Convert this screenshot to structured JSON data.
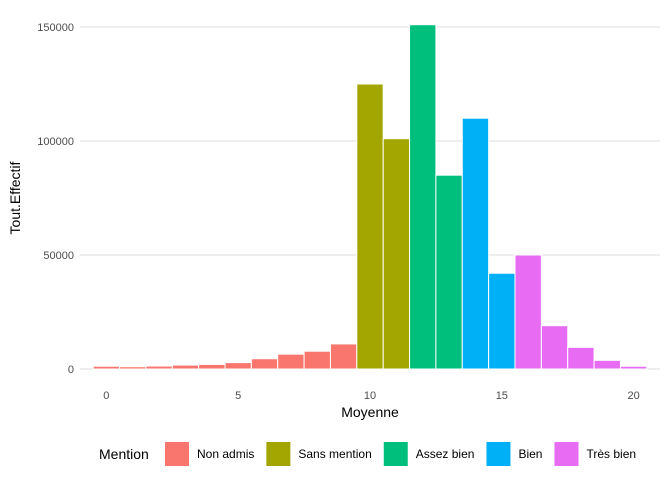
{
  "chart_data": {
    "type": "bar",
    "title": "",
    "xlabel": "Moyenne",
    "ylabel": "Tout.Effectif",
    "xlim": [
      -1,
      21
    ],
    "ylim": [
      0,
      155000
    ],
    "x_ticks": [
      0,
      5,
      10,
      15,
      20
    ],
    "x_tick_labels": [
      "0",
      "5",
      "10",
      "15",
      "20"
    ],
    "y_ticks": [
      0,
      50000,
      100000,
      150000
    ],
    "y_tick_labels": [
      "0",
      "50000",
      "100000",
      "150000"
    ],
    "grid": true,
    "legend": {
      "title": "Mention",
      "placement": "bottom",
      "entries": [
        {
          "label": "Non admis",
          "color": "#F8766D"
        },
        {
          "label": "Sans mention",
          "color": "#A3A500"
        },
        {
          "label": "Assez bien",
          "color": "#00BF7D"
        },
        {
          "label": "Bien",
          "color": "#00B0F6"
        },
        {
          "label": "Très bien",
          "color": "#E76BF3"
        }
      ]
    },
    "bin_width": 1,
    "series": [
      {
        "name": "Non admis",
        "color": "#F8766D",
        "x": [
          0,
          1,
          2,
          3,
          4,
          5,
          6,
          7,
          8,
          9
        ],
        "values": [
          1200,
          1000,
          1300,
          1700,
          2000,
          2800,
          4500,
          6500,
          7800,
          11000
        ]
      },
      {
        "name": "Sans mention",
        "color": "#A3A500",
        "x": [
          10,
          11
        ],
        "values": [
          125000,
          101000
        ]
      },
      {
        "name": "Assez bien",
        "color": "#00BF7D",
        "x": [
          12,
          13
        ],
        "values": [
          151000,
          85000
        ]
      },
      {
        "name": "Bien",
        "color": "#00B0F6",
        "x": [
          14,
          15
        ],
        "values": [
          110000,
          42000
        ]
      },
      {
        "name": "Très bien",
        "color": "#E76BF3",
        "x": [
          16,
          17,
          18,
          19,
          20
        ],
        "values": [
          50000,
          19000,
          9500,
          3800,
          1200
        ]
      }
    ]
  }
}
